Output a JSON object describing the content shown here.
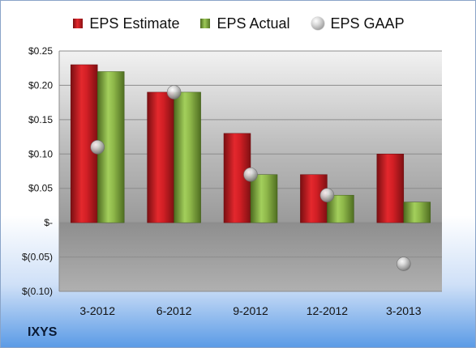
{
  "company": "IXYS",
  "chart_data": {
    "type": "bar",
    "categories": [
      "3-2012",
      "6-2012",
      "9-2012",
      "12-2012",
      "3-2013"
    ],
    "series": [
      {
        "name": "EPS Estimate",
        "kind": "bar",
        "color": "#d42027",
        "values": [
          0.23,
          0.19,
          0.13,
          0.07,
          0.1
        ]
      },
      {
        "name": "EPS Actual",
        "kind": "bar",
        "color": "#8db84a",
        "values": [
          0.22,
          0.19,
          0.07,
          0.04,
          0.03
        ]
      },
      {
        "name": "EPS GAAP",
        "kind": "marker",
        "color": "#b8b8b8",
        "values": [
          0.11,
          0.19,
          0.07,
          0.04,
          -0.06
        ]
      }
    ],
    "yticks": [
      0.25,
      0.2,
      0.15,
      0.1,
      0.05,
      0,
      -0.05,
      -0.1
    ],
    "ytick_labels": [
      "$0.25",
      "$0.20",
      "$0.15",
      "$0.10",
      "$0.05",
      "$-",
      "$(0.05)",
      "$(0.10)"
    ],
    "ylim": [
      -0.1,
      0.25
    ],
    "grid": true,
    "legend_position": "top"
  }
}
